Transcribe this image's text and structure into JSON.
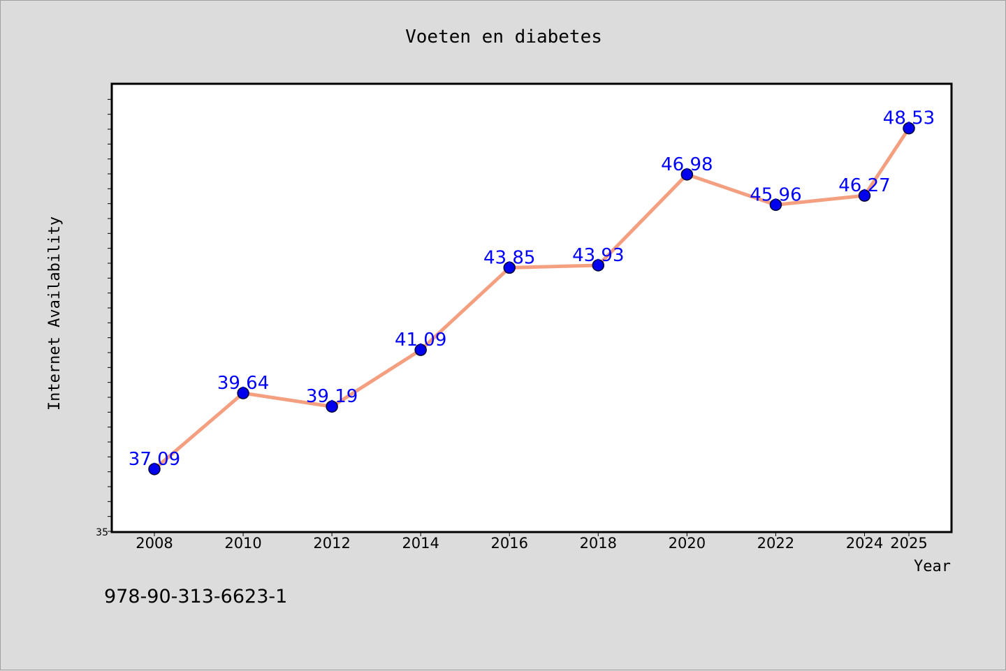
{
  "chart_data": {
    "type": "line",
    "title": "Voeten en diabetes",
    "xlabel": "Year",
    "ylabel": "Internet Availability",
    "x": [
      "2008",
      "2010",
      "2012",
      "2014",
      "2016",
      "2018",
      "2020",
      "2022",
      "2024",
      "2025"
    ],
    "series": [
      {
        "values": [
          37.09,
          39.64,
          39.19,
          41.09,
          43.85,
          43.93,
          46.98,
          45.96,
          46.27,
          48.53
        ],
        "labels": [
          "37.09",
          "39.64",
          "39.19",
          "41.09",
          "43.85",
          "43.93",
          "46.98",
          "45.96",
          "46.27",
          "48.53"
        ],
        "color": "#f4a080",
        "marker_color": "#0000ee"
      }
    ],
    "ylim": [
      35,
      50
    ],
    "yticks": [
      35
    ],
    "ytick_labels": [
      "35"
    ],
    "grid": false,
    "background": "#dcdcdc",
    "plot_background": "#ffffff",
    "label_color": "#0000ff",
    "footer": "978-90-313-6623-1"
  }
}
